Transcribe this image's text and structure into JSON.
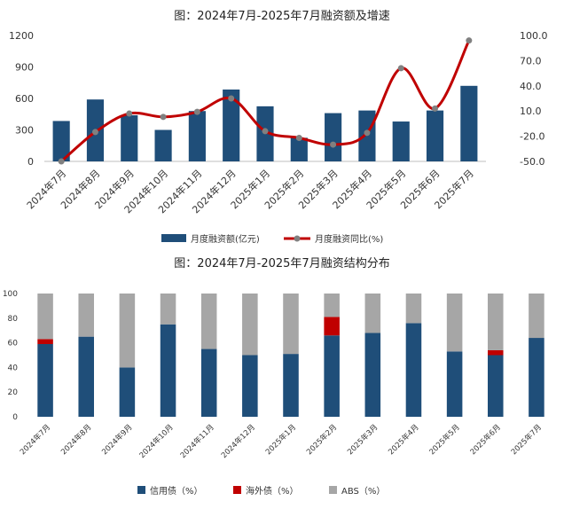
{
  "charts": [
    {
      "type": "bar",
      "title": "图：2024年7月-2025年7月融资额及增速",
      "categories": [
        "2024年7月",
        "2024年8月",
        "2024年9月",
        "2024年10月",
        "2024年11月",
        "2024年12月",
        "2025年1月",
        "2025年2月",
        "2025年3月",
        "2025年4月",
        "2025年5月",
        "2025年6月",
        "2025年7月"
      ],
      "y_left": {
        "ticks": [
          0,
          300,
          600,
          900,
          1200
        ],
        "range": [
          0,
          1200
        ]
      },
      "y_right": {
        "ticks": [
          -50.0,
          -20.0,
          10.0,
          40.0,
          70.0,
          100.0
        ],
        "range": [
          -50,
          100
        ]
      },
      "series": [
        {
          "name": "月度融资额(亿元)",
          "kind": "bar",
          "axis": "left",
          "color": "#1f4e79",
          "values": [
            385,
            590,
            440,
            300,
            480,
            685,
            525,
            225,
            460,
            485,
            380,
            485,
            720
          ]
        },
        {
          "name": "月度融资同比(%)",
          "kind": "line",
          "axis": "right",
          "color": "#c00000",
          "marker_color": "#808080",
          "values": [
            -50,
            -15,
            7,
            3,
            9,
            25,
            -14,
            -22,
            -30,
            -16,
            61,
            13,
            94
          ]
        }
      ],
      "legend_position": "bottom",
      "grid": false
    },
    {
      "type": "bar",
      "stacked": true,
      "title": "图：2024年7月-2025年7月融资结构分布",
      "categories": [
        "2024年7月",
        "2024年8月",
        "2024年9月",
        "2024年10月",
        "2024年11月",
        "2024年12月",
        "2025年1月",
        "2025年2月",
        "2025年3月",
        "2025年4月",
        "2025年5月",
        "2025年6月",
        "2025年7月"
      ],
      "y_axis": {
        "ticks": [
          0,
          20,
          40,
          60,
          80,
          100
        ],
        "range": [
          0,
          100
        ]
      },
      "series": [
        {
          "name": "信用债（%）",
          "color": "#1f4e79",
          "values": [
            59,
            65,
            40,
            75,
            55,
            50,
            51,
            66,
            68,
            76,
            53,
            50,
            64
          ]
        },
        {
          "name": "海外债（%）",
          "color": "#c00000",
          "values": [
            4,
            0,
            0,
            0,
            0,
            0,
            0,
            15,
            0,
            0,
            0,
            4,
            0
          ]
        },
        {
          "name": "ABS（%）",
          "color": "#a6a6a6",
          "values": [
            37,
            35,
            60,
            25,
            45,
            50,
            49,
            19,
            32,
            24,
            47,
            46,
            36
          ]
        }
      ],
      "legend_position": "bottom",
      "grid": false
    }
  ]
}
